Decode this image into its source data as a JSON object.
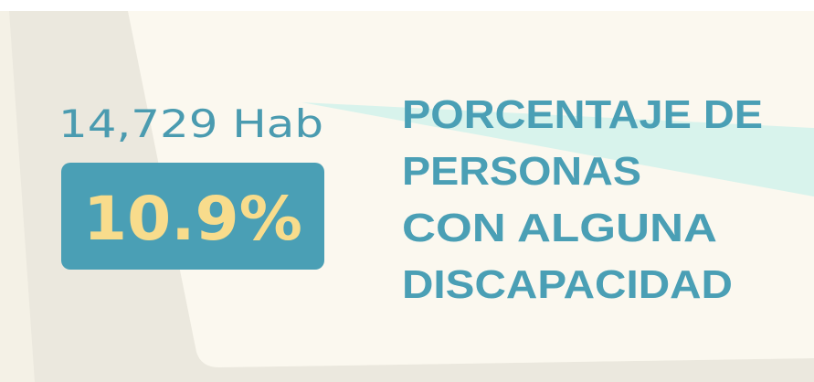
{
  "population": "14,729 Hab",
  "percentage": "10.9%",
  "title_lines": [
    "PORCENTAJE DE",
    "PERSONAS",
    "CON ALGUNA",
    "DISCAPACIDAD"
  ]
}
